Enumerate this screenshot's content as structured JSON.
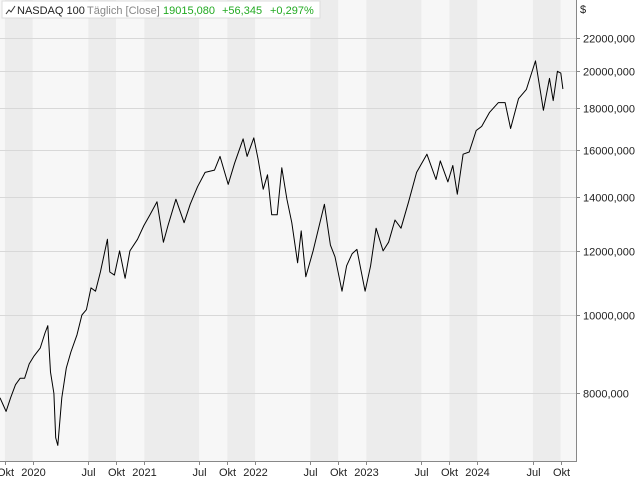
{
  "chart_data": {
    "type": "line",
    "instrument": "NASDAQ 100",
    "interval": "Täglich [Close]",
    "last_value": "19015,080",
    "change_abs": "+56,345",
    "change_pct": "+0,297%",
    "currency": "$",
    "y_scale": "log",
    "ylim": [
      6600,
      24500
    ],
    "grid": true,
    "y_ticks": [
      {
        "value": 8000,
        "label": "8000,000"
      },
      {
        "value": 10000,
        "label": "10000,000"
      },
      {
        "value": 12000,
        "label": "12000,000"
      },
      {
        "value": 14000,
        "label": "14000,000"
      },
      {
        "value": 16000,
        "label": "16000,000"
      },
      {
        "value": 18000,
        "label": "18000,000"
      },
      {
        "value": 20000,
        "label": "20000,000"
      },
      {
        "value": 22000,
        "label": "22000,000"
      }
    ],
    "xlim": [
      "2019-09-15",
      "2024-11-20"
    ],
    "x_ticks": [
      {
        "date": "2019-10-01",
        "label": "Okt"
      },
      {
        "date": "2020-01-01",
        "label": "2020"
      },
      {
        "date": "2020-07-01",
        "label": "Jul"
      },
      {
        "date": "2020-10-01",
        "label": "Okt"
      },
      {
        "date": "2021-01-01",
        "label": "2021"
      },
      {
        "date": "2021-07-01",
        "label": "Jul"
      },
      {
        "date": "2021-10-01",
        "label": "Okt"
      },
      {
        "date": "2022-01-01",
        "label": "2022"
      },
      {
        "date": "2022-07-01",
        "label": "Jul"
      },
      {
        "date": "2022-10-01",
        "label": "Okt"
      },
      {
        "date": "2023-01-01",
        "label": "2023"
      },
      {
        "date": "2023-07-01",
        "label": "Jul"
      },
      {
        "date": "2023-10-01",
        "label": "Okt"
      },
      {
        "date": "2024-01-01",
        "label": "2024"
      },
      {
        "date": "2024-07-01",
        "label": "Jul"
      },
      {
        "date": "2024-10-01",
        "label": "Okt"
      }
    ],
    "series": [
      {
        "name": "NASDAQ 100",
        "color": "#000000",
        "points": [
          [
            "2019-09-15",
            7900
          ],
          [
            "2019-09-25",
            7750
          ],
          [
            "2019-10-05",
            7600
          ],
          [
            "2019-10-20",
            7900
          ],
          [
            "2019-11-05",
            8200
          ],
          [
            "2019-11-20",
            8350
          ],
          [
            "2019-12-05",
            8350
          ],
          [
            "2019-12-20",
            8700
          ],
          [
            "2020-01-05",
            8900
          ],
          [
            "2020-01-25",
            9100
          ],
          [
            "2020-02-10",
            9500
          ],
          [
            "2020-02-19",
            9700
          ],
          [
            "2020-02-28",
            8500
          ],
          [
            "2020-03-10",
            8000
          ],
          [
            "2020-03-16",
            7050
          ],
          [
            "2020-03-23",
            6900
          ],
          [
            "2020-04-05",
            7900
          ],
          [
            "2020-04-20",
            8600
          ],
          [
            "2020-05-05",
            9000
          ],
          [
            "2020-05-25",
            9450
          ],
          [
            "2020-06-10",
            10000
          ],
          [
            "2020-06-25",
            10150
          ],
          [
            "2020-07-10",
            10800
          ],
          [
            "2020-07-25",
            10700
          ],
          [
            "2020-08-10",
            11300
          ],
          [
            "2020-09-02",
            12400
          ],
          [
            "2020-09-10",
            11300
          ],
          [
            "2020-09-25",
            11200
          ],
          [
            "2020-10-12",
            12000
          ],
          [
            "2020-10-30",
            11100
          ],
          [
            "2020-11-15",
            12000
          ],
          [
            "2020-12-10",
            12400
          ],
          [
            "2020-12-31",
            12900
          ],
          [
            "2021-01-20",
            13300
          ],
          [
            "2021-02-12",
            13800
          ],
          [
            "2021-03-05",
            12300
          ],
          [
            "2021-03-20",
            12900
          ],
          [
            "2021-04-15",
            13900
          ],
          [
            "2021-05-12",
            13000
          ],
          [
            "2021-06-01",
            13700
          ],
          [
            "2021-06-25",
            14400
          ],
          [
            "2021-07-20",
            15000
          ],
          [
            "2021-08-20",
            15100
          ],
          [
            "2021-09-07",
            15700
          ],
          [
            "2021-10-04",
            14500
          ],
          [
            "2021-10-25",
            15400
          ],
          [
            "2021-11-22",
            16500
          ],
          [
            "2021-12-05",
            15700
          ],
          [
            "2021-12-27",
            16550
          ],
          [
            "2022-01-10",
            15600
          ],
          [
            "2022-01-27",
            14300
          ],
          [
            "2022-02-10",
            14900
          ],
          [
            "2022-02-24",
            13300
          ],
          [
            "2022-03-14",
            13300
          ],
          [
            "2022-03-29",
            15200
          ],
          [
            "2022-04-15",
            13900
          ],
          [
            "2022-05-01",
            13000
          ],
          [
            "2022-05-20",
            11600
          ],
          [
            "2022-06-01",
            12700
          ],
          [
            "2022-06-16",
            11150
          ],
          [
            "2022-07-10",
            12000
          ],
          [
            "2022-08-16",
            13700
          ],
          [
            "2022-09-05",
            12200
          ],
          [
            "2022-09-20",
            11800
          ],
          [
            "2022-10-13",
            10700
          ],
          [
            "2022-10-28",
            11500
          ],
          [
            "2022-11-15",
            11900
          ],
          [
            "2022-12-01",
            12050
          ],
          [
            "2022-12-28",
            10700
          ],
          [
            "2023-01-15",
            11500
          ],
          [
            "2023-02-02",
            12800
          ],
          [
            "2023-02-25",
            12000
          ],
          [
            "2023-03-15",
            12300
          ],
          [
            "2023-04-05",
            13100
          ],
          [
            "2023-04-25",
            12800
          ],
          [
            "2023-05-20",
            13800
          ],
          [
            "2023-06-15",
            15000
          ],
          [
            "2023-07-19",
            15800
          ],
          [
            "2023-08-18",
            14700
          ],
          [
            "2023-09-01",
            15500
          ],
          [
            "2023-09-26",
            14600
          ],
          [
            "2023-10-12",
            15300
          ],
          [
            "2023-10-27",
            14100
          ],
          [
            "2023-11-15",
            15800
          ],
          [
            "2023-12-05",
            15900
          ],
          [
            "2023-12-28",
            16900
          ],
          [
            "2024-01-15",
            17100
          ],
          [
            "2024-02-10",
            17800
          ],
          [
            "2024-03-10",
            18300
          ],
          [
            "2024-04-01",
            18300
          ],
          [
            "2024-04-19",
            17000
          ],
          [
            "2024-05-15",
            18500
          ],
          [
            "2024-06-10",
            19000
          ],
          [
            "2024-06-25",
            19800
          ],
          [
            "2024-07-10",
            20600
          ],
          [
            "2024-07-25",
            19000
          ],
          [
            "2024-08-05",
            17900
          ],
          [
            "2024-08-25",
            19600
          ],
          [
            "2024-09-06",
            18400
          ],
          [
            "2024-09-20",
            20000
          ],
          [
            "2024-10-01",
            19900
          ],
          [
            "2024-10-08",
            19020
          ]
        ]
      }
    ]
  }
}
